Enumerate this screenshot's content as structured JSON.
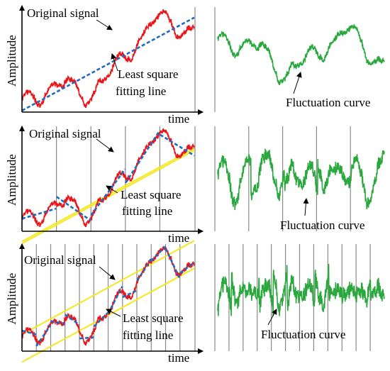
{
  "panels": [
    {
      "id": "row-1",
      "y_axis_label": "Amplitude",
      "x_axis_label": "time",
      "signal_label": "Original signal",
      "fit_label_line1": "Least square",
      "fit_label_line2": "fitting line",
      "fluctuation_label": "Fluctuation curve",
      "segments": 1
    },
    {
      "id": "row-2",
      "y_axis_label": "Amplitude",
      "x_axis_label": "time",
      "signal_label": "Original signal",
      "fit_label_line1": "Least square",
      "fit_label_line2": "fitting line",
      "fluctuation_label": "Fluctuation curve",
      "segments": 5
    },
    {
      "id": "row-3",
      "y_axis_label": "Amplitude",
      "x_axis_label": "time",
      "signal_label": "Original signal",
      "fit_label_line1": "Least square",
      "fit_label_line2": "fitting line",
      "fluctuation_label": "Fluctuation curve",
      "segments": 12
    }
  ],
  "colors": {
    "signal": "#e8161b",
    "fit_line": "#1f6bc4",
    "overall_trend": "#f5e81c",
    "fluctuation": "#2aa83e",
    "divider": "#8a8a8a",
    "axis": "#000000"
  }
}
